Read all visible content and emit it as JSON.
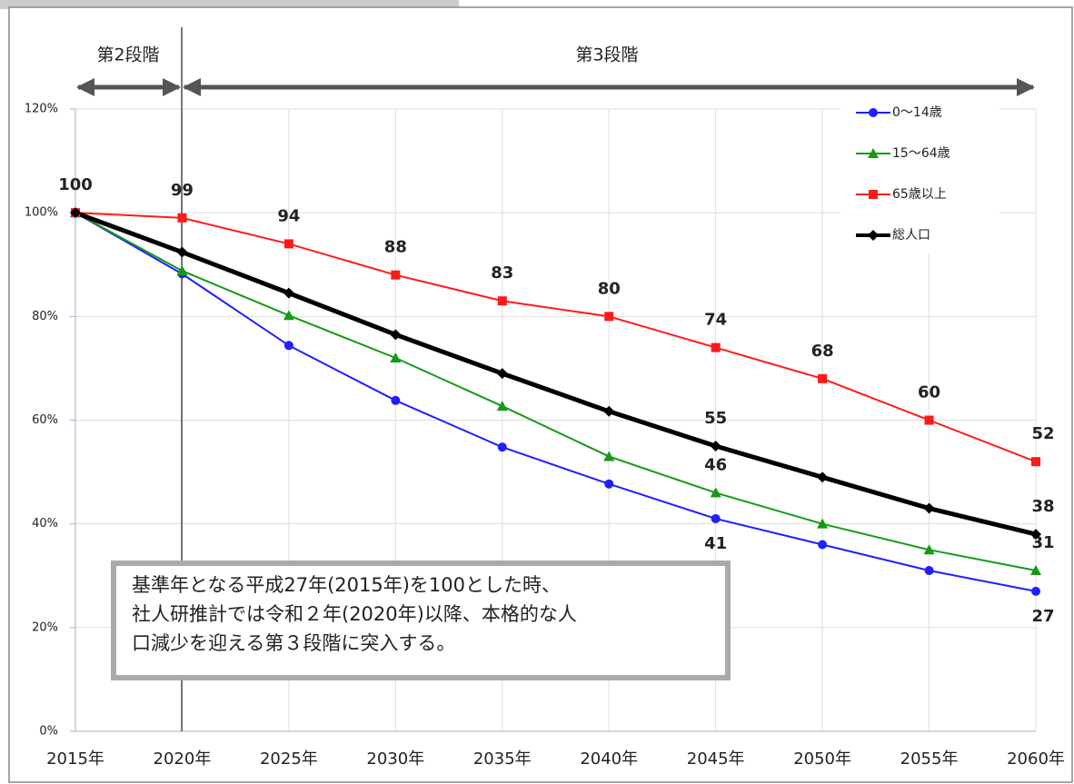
{
  "chart_data": {
    "type": "line",
    "categories": [
      "2015年",
      "2020年",
      "2025年",
      "2030年",
      "2035年",
      "2040年",
      "2045年",
      "2050年",
      "2055年",
      "2060年"
    ],
    "ylim": [
      0,
      120
    ],
    "yticks": [
      {
        "value": 0,
        "label": "0%"
      },
      {
        "value": 20,
        "label": "20%"
      },
      {
        "value": 40,
        "label": "40%"
      },
      {
        "value": 60,
        "label": "60%"
      },
      {
        "value": 80,
        "label": "80%"
      },
      {
        "value": 100,
        "label": "100%"
      },
      {
        "value": 120,
        "label": "120%"
      }
    ],
    "grid": true,
    "legend": "upper right",
    "series": [
      {
        "name": "0～14歳",
        "color": "#1f1fff",
        "marker": "circle",
        "values": [
          100,
          88.2,
          74.4,
          63.8,
          54.8,
          47.7,
          41,
          36,
          31,
          27
        ],
        "value_labels": [
          null,
          null,
          null,
          null,
          null,
          null,
          "41",
          null,
          null,
          "27"
        ]
      },
      {
        "name": "15～64歳",
        "color": "#159a15",
        "marker": "triangle",
        "values": [
          100,
          88.8,
          80.2,
          72,
          62.7,
          53,
          46,
          40,
          35,
          31
        ],
        "value_labels": [
          null,
          null,
          null,
          null,
          null,
          null,
          "46",
          null,
          null,
          "31"
        ]
      },
      {
        "name": "65歳以上",
        "color": "#ff1a1a",
        "marker": "square",
        "values": [
          100,
          99,
          94,
          88,
          83,
          80,
          74,
          68,
          60,
          52
        ],
        "value_labels": [
          "100",
          "99",
          "94",
          "88",
          "83",
          "80",
          "74",
          "68",
          "60",
          "52"
        ]
      },
      {
        "name": "総人口",
        "color": "#000000",
        "marker": "diamond",
        "values": [
          100,
          92.4,
          84.5,
          76.5,
          69,
          61.7,
          55,
          49,
          43,
          38
        ],
        "value_labels": [
          null,
          null,
          null,
          null,
          null,
          null,
          "55",
          null,
          null,
          "38"
        ]
      }
    ],
    "phases": [
      "第2段階",
      "第3段階"
    ],
    "annotation": [
      "基準年となる平成27年(2015年)を100とした時、",
      "社人研推計では令和２年(2020年)以降、本格的な人",
      "口減少を迎える第３段階に突入する。"
    ]
  }
}
